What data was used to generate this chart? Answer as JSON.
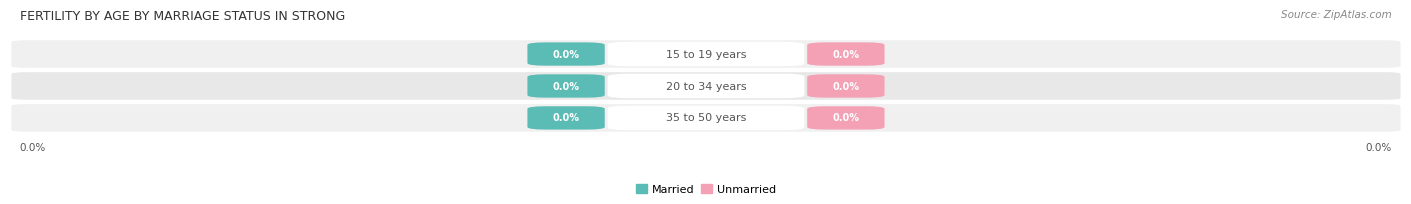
{
  "title": "FERTILITY BY AGE BY MARRIAGE STATUS IN STRONG",
  "source": "Source: ZipAtlas.com",
  "categories": [
    "15 to 19 years",
    "20 to 34 years",
    "35 to 50 years"
  ],
  "married_values": [
    0.0,
    0.0,
    0.0
  ],
  "unmarried_values": [
    0.0,
    0.0,
    0.0
  ],
  "married_color": "#5bbcb5",
  "unmarried_color": "#f4a0b5",
  "row_bg_color_odd": "#f0f0f0",
  "row_bg_color_even": "#e8e8e8",
  "label_color": "#555555",
  "title_color": "#333333",
  "source_color": "#888888",
  "legend_married": "Married",
  "legend_unmarried": "Unmarried",
  "left_axis_label": "0.0%",
  "right_axis_label": "0.0%"
}
